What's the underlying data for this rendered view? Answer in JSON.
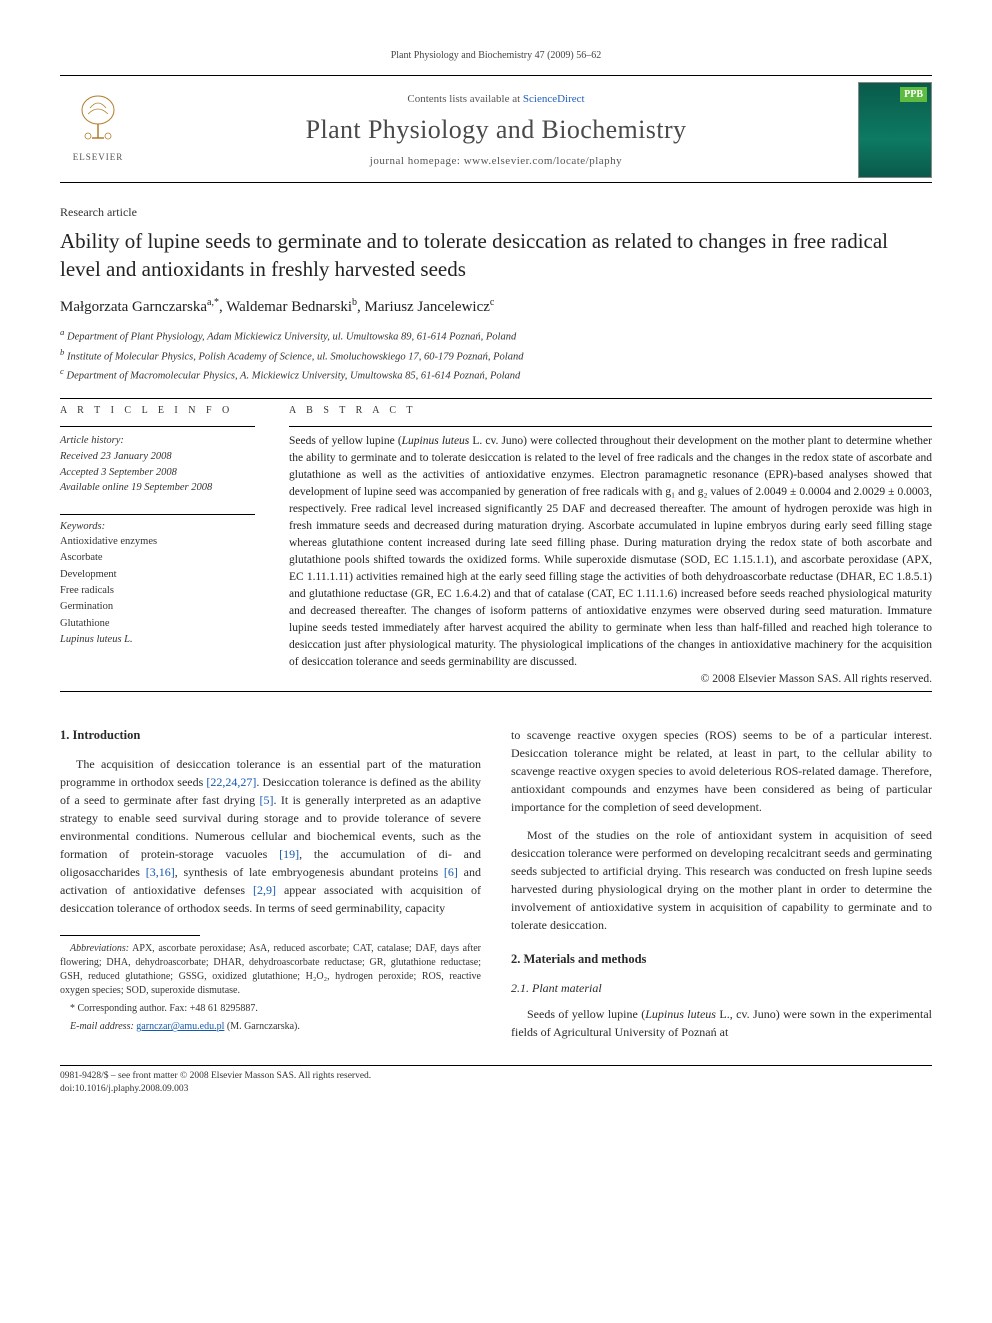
{
  "runningHead": "Plant Physiology and Biochemistry 47 (2009) 56–62",
  "masthead": {
    "contents_prefix": "Contents lists available at ",
    "contents_link": "ScienceDirect",
    "journal_title": "Plant Physiology and Biochemistry",
    "homepage_prefix": "journal homepage: ",
    "homepage": "www.elsevier.com/locate/plaphy",
    "elsevier_word": "ELSEVIER",
    "cover_badge": "PPB"
  },
  "article": {
    "type": "Research article",
    "title": "Ability of lupine seeds to germinate and to tolerate desiccation as related to changes in free radical level and antioxidants in freshly harvested seeds",
    "authors_html": "Małgorzata Garnczarska",
    "author1": "Małgorzata Garnczarska",
    "author1_sup": "a,*",
    "author2": "Waldemar Bednarski",
    "author2_sup": "b",
    "author3": "Mariusz Jancelewicz",
    "author3_sup": "c",
    "aff_a": "Department of Plant Physiology, Adam Mickiewicz University, ul. Umultowska 89, 61-614 Poznań, Poland",
    "aff_b": "Institute of Molecular Physics, Polish Academy of Science, ul. Smoluchowskiego 17, 60-179 Poznań, Poland",
    "aff_c": "Department of Macromolecular Physics, A. Mickiewicz University, Umultowska 85, 61-614 Poznań, Poland"
  },
  "info": {
    "head": "A R T I C L E   I N F O",
    "history_label": "Article history:",
    "received": "Received 23 January 2008",
    "accepted": "Accepted 3 September 2008",
    "online": "Available online 19 September 2008",
    "keywords_label": "Keywords:",
    "keywords": [
      "Antioxidative enzymes",
      "Ascorbate",
      "Development",
      "Free radicals",
      "Germination",
      "Glutathione"
    ],
    "keywords_latin": "Lupinus luteus L."
  },
  "abstract": {
    "head": "A B S T R A C T",
    "text": "Seeds of yellow lupine (Lupinus luteus L. cv. Juno) were collected throughout their development on the mother plant to determine whether the ability to germinate and to tolerate desiccation is related to the level of free radicals and the changes in the redox state of ascorbate and glutathione as well as the activities of antioxidative enzymes. Electron paramagnetic resonance (EPR)-based analyses showed that development of lupine seed was accompanied by generation of free radicals with g₁ and g₂ values of 2.0049 ± 0.0004 and 2.0029 ± 0.0003, respectively. Free radical level increased significantly 25 DAF and decreased thereafter. The amount of hydrogen peroxide was high in fresh immature seeds and decreased during maturation drying. Ascorbate accumulated in lupine embryos during early seed filling stage whereas glutathione content increased during late seed filling phase. During maturation drying the redox state of both ascorbate and glutathione pools shifted towards the oxidized forms. While superoxide dismutase (SOD, EC 1.15.1.1), and ascorbate peroxidase (APX, EC 1.11.1.11) activities remained high at the early seed filling stage the activities of both dehydroascorbate reductase (DHAR, EC 1.8.5.1) and glutathione reductase (GR, EC 1.6.4.2) and that of catalase (CAT, EC 1.11.1.6) increased before seeds reached physiological maturity and decreased thereafter. The changes of isoform patterns of antioxidative enzymes were observed during seed maturation. Immature lupine seeds tested immediately after harvest acquired the ability to germinate when less than half-filled and reached high tolerance to desiccation just after physiological maturity. The physiological implications of the changes in antioxidative machinery for the acquisition of desiccation tolerance and seeds germinability are discussed.",
    "copyright": "© 2008 Elsevier Masson SAS. All rights reserved."
  },
  "body": {
    "sec1_head": "1. Introduction",
    "sec1_p1": "The acquisition of desiccation tolerance is an essential part of the maturation programme in orthodox seeds [22,24,27]. Desiccation tolerance is defined as the ability of a seed to germinate after fast drying [5]. It is generally interpreted as an adaptive strategy to enable seed survival during storage and to provide tolerance of severe environmental conditions. Numerous cellular and biochemical events, such as the formation of protein-storage vacuoles [19], the accumulation of di- and oligosaccharides [3,16], synthesis of late embryogenesis abundant proteins [6] and activation of antioxidative defenses [2,9] appear associated with acquisition of desiccation tolerance of orthodox seeds. In terms of seed germinability, capacity",
    "sec1_p2": "to scavenge reactive oxygen species (ROS) seems to be of a particular interest. Desiccation tolerance might be related, at least in part, to the cellular ability to scavenge reactive oxygen species to avoid deleterious ROS-related damage. Therefore, antioxidant compounds and enzymes have been considered as being of particular importance for the completion of seed development.",
    "sec1_p3": "Most of the studies on the role of antioxidant system in acquisition of seed desiccation tolerance were performed on developing recalcitrant seeds and germinating seeds subjected to artificial drying. This research was conducted on fresh lupine seeds harvested during physiological drying on the mother plant in order to determine the involvement of antioxidative system in acquisition of capability to germinate and to tolerate desiccation.",
    "sec2_head": "2. Materials and methods",
    "sec21_head": "2.1. Plant material",
    "sec21_p1": "Seeds of yellow lupine (Lupinus luteus L., cv. Juno) were sown in the experimental fields of Agricultural University of Poznań at"
  },
  "footnotes": {
    "abbrev_label": "Abbreviations:",
    "abbrev_text": " APX, ascorbate peroxidase; AsA, reduced ascorbate; CAT, catalase; DAF, days after flowering; DHA, dehydroascorbate; DHAR, dehydroascorbate reductase; GR, glutathione reductase; GSH, reduced glutathione; GSSG, oxidized glutathione; H₂O₂, hydrogen peroxide; ROS, reactive oxygen species; SOD, superoxide dismutase.",
    "corr": "* Corresponding author. Fax: +48 61 8295887.",
    "email_label": "E-mail address:",
    "email": "garnczar@amu.edu.pl",
    "email_suffix": " (M. Garnczarska)."
  },
  "bottom": {
    "line1": "0981-9428/$ – see front matter © 2008 Elsevier Masson SAS. All rights reserved.",
    "line2": "doi:10.1016/j.plaphy.2008.09.003"
  },
  "colors": {
    "link": "#1558b0",
    "text": "#2a2a2a"
  }
}
